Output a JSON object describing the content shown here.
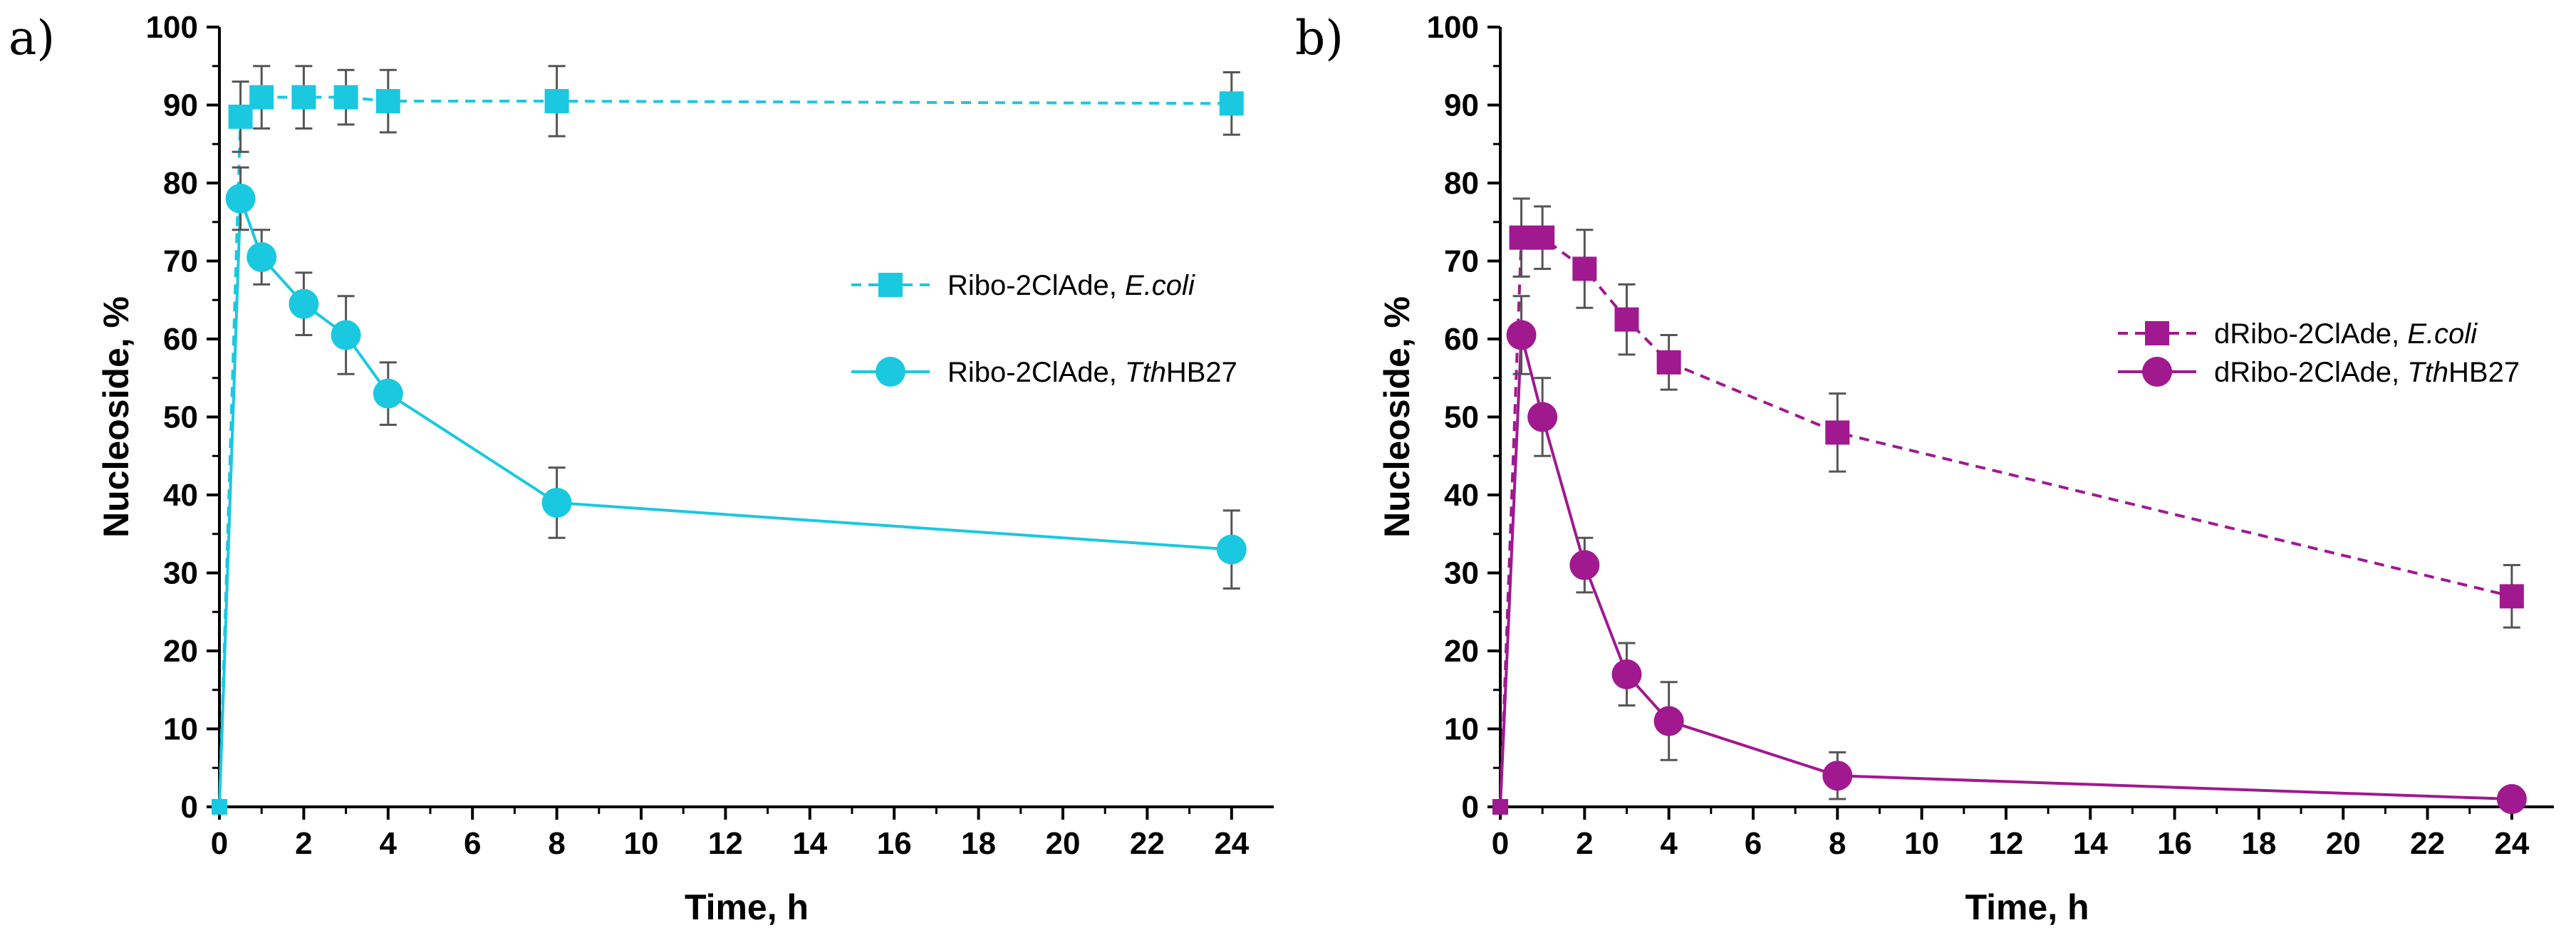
{
  "chart_data": [
    {
      "panel_label": "a)",
      "type": "line",
      "xlabel": "Time, h",
      "ylabel": "Nucleoside, %",
      "xlim": [
        0,
        25
      ],
      "ylim": [
        0,
        100
      ],
      "xticks": [
        0,
        2,
        4,
        6,
        8,
        10,
        12,
        14,
        16,
        18,
        20,
        22,
        24
      ],
      "yticks": [
        0,
        10,
        20,
        30,
        40,
        50,
        60,
        70,
        80,
        90,
        100
      ],
      "legend_position": "center-right",
      "series": [
        {
          "name": "Ribo-2ClAde, E.coli",
          "name_parts": [
            "Ribo-2ClAde, ",
            "E.coli",
            ""
          ],
          "color": "#1ac8e0",
          "marker": "square",
          "line": "dashed",
          "x": [
            0,
            0.5,
            1,
            2,
            3,
            4,
            8,
            24
          ],
          "y": [
            0,
            88.5,
            91,
            91,
            91,
            90.5,
            90.5,
            90.2
          ],
          "err": [
            0,
            4.5,
            4,
            4,
            3.5,
            4,
            4.5,
            4
          ]
        },
        {
          "name": "Ribo-2ClAde, TthHB27",
          "name_parts": [
            "Ribo-2ClAde, ",
            "Tth",
            "HB27"
          ],
          "color": "#1ac8e0",
          "marker": "circle",
          "line": "solid",
          "x": [
            0,
            0.5,
            1,
            2,
            3,
            4,
            8,
            24
          ],
          "y": [
            0,
            78,
            70.5,
            64.5,
            60.5,
            53,
            39,
            33
          ],
          "err": [
            0,
            4,
            3.5,
            4,
            5,
            4,
            4.5,
            5
          ]
        }
      ]
    },
    {
      "panel_label": "b)",
      "type": "line",
      "xlabel": "Time, h",
      "ylabel": "Nucleoside, %",
      "xlim": [
        0,
        25
      ],
      "ylim": [
        0,
        100
      ],
      "xticks": [
        0,
        2,
        4,
        6,
        8,
        10,
        12,
        14,
        16,
        18,
        20,
        22,
        24
      ],
      "yticks": [
        0,
        10,
        20,
        30,
        40,
        50,
        60,
        70,
        80,
        90,
        100
      ],
      "legend_position": "center-right",
      "series": [
        {
          "name": "dRibo-2ClAde, E.coli",
          "name_parts": [
            "dRibo-2ClAde, ",
            "E.coli",
            ""
          ],
          "color": "#a0198f",
          "marker": "square",
          "line": "dashed",
          "x": [
            0,
            0.5,
            1,
            2,
            3,
            4,
            8,
            24
          ],
          "y": [
            0,
            73,
            73,
            69,
            62.5,
            57,
            48,
            27
          ],
          "err": [
            0,
            5,
            4,
            5,
            4.5,
            3.5,
            5,
            4
          ]
        },
        {
          "name": "dRibo-2ClAde, TthHB27",
          "name_parts": [
            "dRibo-2ClAde, ",
            "Tth",
            "HB27"
          ],
          "color": "#a0198f",
          "marker": "circle",
          "line": "solid",
          "x": [
            0,
            0.5,
            1,
            2,
            3,
            4,
            8,
            24
          ],
          "y": [
            0,
            60.5,
            50,
            31,
            17,
            11,
            4,
            1
          ],
          "err": [
            0,
            5,
            5,
            3.5,
            4,
            5,
            3,
            0.5
          ]
        }
      ]
    }
  ]
}
